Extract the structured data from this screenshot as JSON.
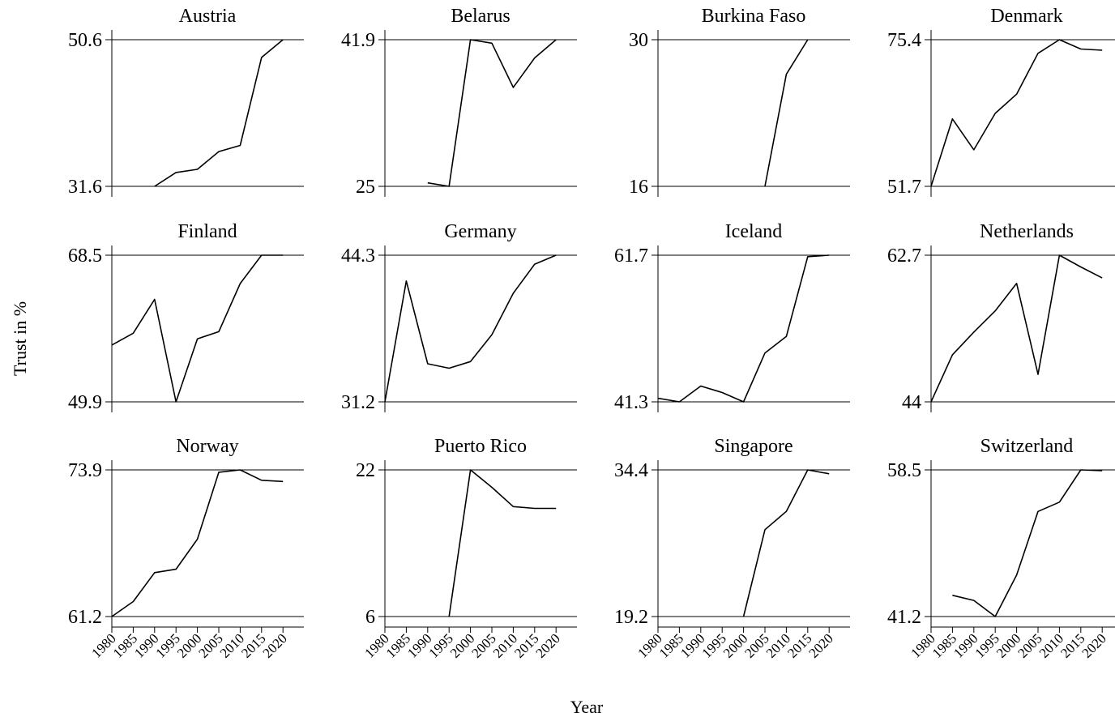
{
  "figure": {
    "xlabel": "Year",
    "ylabel": "Trust in %"
  },
  "colors": {
    "line": "#000000",
    "background": "#ffffff"
  },
  "chart_data": [
    {
      "type": "line",
      "title": "Austria",
      "ylim": [
        31.6,
        50.6
      ],
      "yticks": [
        "31.6",
        "50.6"
      ],
      "x": [
        1990,
        1995,
        2000,
        2005,
        2010,
        2015,
        2020
      ],
      "values": [
        31.6,
        33.4,
        33.8,
        36.1,
        36.9,
        48.3,
        50.6
      ]
    },
    {
      "type": "line",
      "title": "Belarus",
      "ylim": [
        25,
        41.9
      ],
      "yticks": [
        "25",
        "41.9"
      ],
      "x": [
        1990,
        1995,
        2000,
        2005,
        2010,
        2015,
        2020
      ],
      "values": [
        25.4,
        25,
        41.9,
        41.5,
        36.4,
        39.8,
        41.9
      ]
    },
    {
      "type": "line",
      "title": "Burkina Faso",
      "ylim": [
        16,
        30
      ],
      "yticks": [
        "16",
        "30"
      ],
      "x": [
        2005,
        2010,
        2015
      ],
      "values": [
        16,
        26.7,
        30
      ]
    },
    {
      "type": "line",
      "title": "Denmark",
      "ylim": [
        51.7,
        75.4
      ],
      "yticks": [
        "51.7",
        "75.4"
      ],
      "x": [
        1980,
        1985,
        1990,
        1995,
        2000,
        2005,
        2010,
        2015,
        2020
      ],
      "values": [
        51.7,
        62.6,
        57.6,
        63.5,
        66.6,
        73.2,
        75.4,
        73.9,
        73.7
      ]
    },
    {
      "type": "line",
      "title": "Finland",
      "ylim": [
        49.9,
        68.5
      ],
      "yticks": [
        "49.9",
        "68.5"
      ],
      "x": [
        1980,
        1985,
        1990,
        1995,
        2000,
        2005,
        2010,
        2015,
        2020
      ],
      "values": [
        57.1,
        58.6,
        62.9,
        49.9,
        57.9,
        58.8,
        64.9,
        68.5,
        68.5
      ]
    },
    {
      "type": "line",
      "title": "Germany",
      "ylim": [
        31.2,
        44.3
      ],
      "yticks": [
        "31.2",
        "44.3"
      ],
      "x": [
        1980,
        1985,
        1990,
        1995,
        2000,
        2005,
        2010,
        2015,
        2020
      ],
      "values": [
        31.2,
        42,
        34.6,
        34.2,
        34.8,
        37.2,
        40.9,
        43.5,
        44.3
      ]
    },
    {
      "type": "line",
      "title": "Iceland",
      "ylim": [
        41.3,
        61.7
      ],
      "yticks": [
        "41.3",
        "61.7"
      ],
      "x": [
        1980,
        1985,
        1990,
        1995,
        2000,
        2005,
        2010,
        2015,
        2020
      ],
      "values": [
        41.8,
        41.3,
        43.5,
        42.6,
        41.3,
        48.1,
        50.4,
        61.5,
        61.7
      ]
    },
    {
      "type": "line",
      "title": "Netherlands",
      "ylim": [
        44,
        62.7
      ],
      "yticks": [
        "44",
        "62.7"
      ],
      "x": [
        1980,
        1985,
        1990,
        1995,
        2000,
        2005,
        2010,
        2015,
        2020
      ],
      "values": [
        44,
        50,
        52.9,
        55.6,
        59.1,
        47.5,
        62.7,
        61.2,
        59.8
      ]
    },
    {
      "type": "line",
      "title": "Norway",
      "ylim": [
        61.2,
        73.9
      ],
      "yticks": [
        "61.2",
        "73.9"
      ],
      "x": [
        1980,
        1985,
        1990,
        1995,
        2000,
        2005,
        2010,
        2015,
        2020
      ],
      "values": [
        61.2,
        62.5,
        65,
        65.3,
        67.9,
        73.7,
        73.9,
        73,
        72.9
      ]
    },
    {
      "type": "line",
      "title": "Puerto Rico",
      "ylim": [
        6,
        22
      ],
      "yticks": [
        "6",
        "22"
      ],
      "x": [
        1995,
        2000,
        2005,
        2010,
        2015,
        2020
      ],
      "values": [
        6,
        22,
        20.1,
        18,
        17.8,
        17.8
      ]
    },
    {
      "type": "line",
      "title": "Singapore",
      "ylim": [
        19.2,
        34.4
      ],
      "yticks": [
        "19.2",
        "34.4"
      ],
      "x": [
        2000,
        2005,
        2010,
        2015,
        2020
      ],
      "values": [
        19.2,
        28.2,
        30.1,
        34.4,
        34
      ]
    },
    {
      "type": "line",
      "title": "Switzerland",
      "ylim": [
        41.2,
        58.5
      ],
      "yticks": [
        "41.2",
        "58.5"
      ],
      "x": [
        1985,
        1990,
        1995,
        2000,
        2005,
        2010,
        2015,
        2020
      ],
      "values": [
        43.7,
        43.1,
        41.2,
        46.1,
        53.6,
        54.7,
        58.5,
        58.4
      ]
    }
  ],
  "x_ticks": [
    "1980",
    "1985",
    "1990",
    "1995",
    "2000",
    "2005",
    "2010",
    "2015",
    "2020"
  ]
}
